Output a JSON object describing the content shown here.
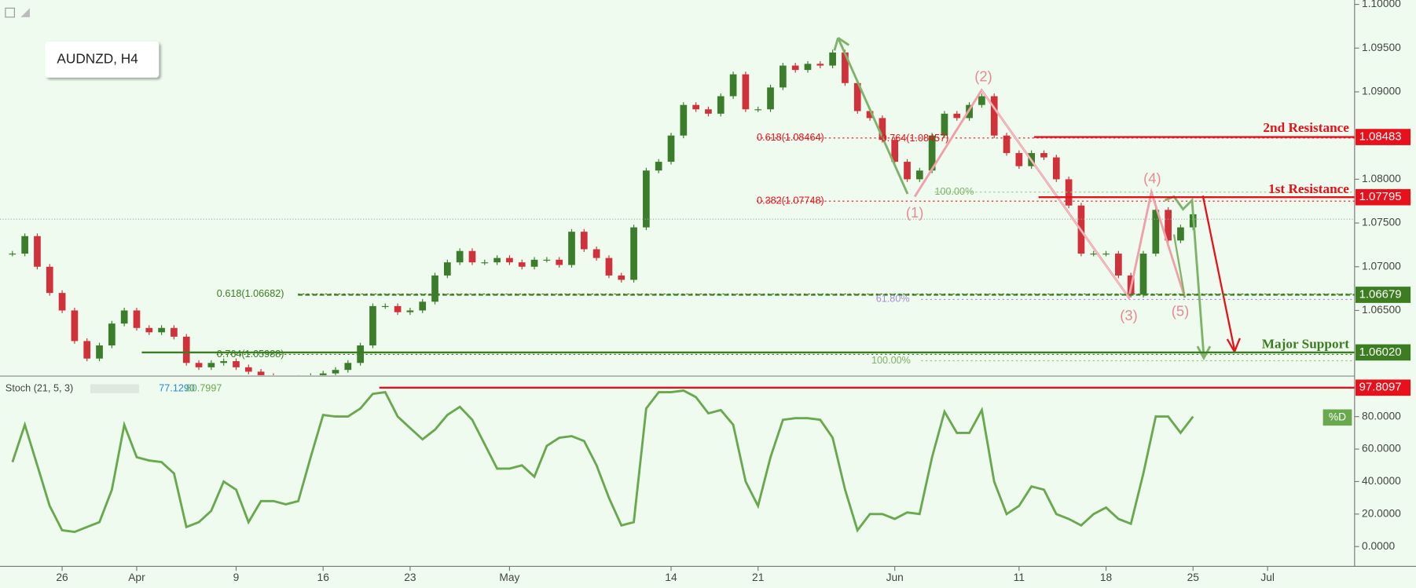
{
  "symbol": "AUDNZD, H4",
  "chart_data": [
    {
      "type": "candlestick",
      "x": [
        -4,
        -3,
        -2,
        -1,
        0,
        1,
        2,
        3,
        4,
        5,
        6,
        7,
        8,
        9,
        10,
        11,
        12,
        13,
        14,
        15,
        16,
        17,
        18,
        19,
        20,
        21,
        22,
        23,
        24,
        25,
        26,
        27,
        28,
        29,
        30,
        31,
        32,
        33,
        34,
        35,
        36,
        37,
        38,
        39,
        40,
        41,
        42,
        43,
        44,
        45,
        46,
        47,
        48,
        49,
        50,
        51,
        52,
        53,
        54,
        55,
        56,
        57,
        58,
        59,
        60,
        61,
        62,
        63,
        64,
        65,
        66,
        67,
        68,
        69,
        70,
        71,
        72,
        73,
        74,
        75,
        76,
        77,
        78,
        79,
        80,
        81,
        82,
        83,
        84,
        85,
        86,
        87,
        88,
        89,
        90,
        91
      ],
      "close": [
        1.0715,
        1.0735,
        1.07,
        1.067,
        1.065,
        1.0615,
        1.0595,
        1.061,
        1.0635,
        1.065,
        1.063,
        1.0625,
        1.063,
        1.062,
        1.059,
        1.0585,
        1.059,
        1.0592,
        1.0585,
        1.058,
        1.0575,
        1.057,
        1.0572,
        1.0573,
        1.0575,
        1.0578,
        1.0582,
        1.059,
        1.061,
        1.0655,
        1.0655,
        1.0648,
        1.065,
        1.066,
        1.069,
        1.0705,
        1.0718,
        1.0705,
        1.0705,
        1.071,
        1.0705,
        1.07,
        1.0708,
        1.0708,
        1.0702,
        1.074,
        1.072,
        1.071,
        1.069,
        1.0685,
        1.0745,
        1.081,
        1.082,
        1.085,
        1.0885,
        1.088,
        1.0875,
        1.0895,
        1.092,
        1.088,
        1.088,
        1.0905,
        1.093,
        1.0925,
        1.0932,
        1.093,
        1.0945,
        1.091,
        1.0878,
        1.087,
        1.0845,
        1.082,
        1.08,
        1.081,
        1.085,
        1.0875,
        1.087,
        1.0885,
        1.0895,
        1.085,
        1.083,
        1.0815,
        1.083,
        1.0825,
        1.08,
        1.077,
        1.0715,
        1.0715,
        1.0715,
        1.069,
        1.0668,
        1.0715,
        1.0765,
        1.073,
        1.0745,
        1.076
      ],
      "xlim": [
        -5,
        104
      ],
      "ylim": [
        1.0576,
        1.1005
      ],
      "xticks": [
        {
          "value": 0,
          "label": "26"
        },
        {
          "value": 6,
          "label": "Apr"
        },
        {
          "value": 14,
          "label": "9"
        },
        {
          "value": 21,
          "label": "16"
        },
        {
          "value": 28,
          "label": "23"
        },
        {
          "value": 36,
          "label": "May"
        },
        {
          "value": 49,
          "label": "14"
        },
        {
          "value": 56,
          "label": "21"
        },
        {
          "value": 67,
          "label": "Jun"
        },
        {
          "value": 77,
          "label": "11"
        },
        {
          "value": 84,
          "label": "18"
        },
        {
          "value": 91,
          "label": "25"
        },
        {
          "value": 97,
          "label": "Jul"
        }
      ],
      "yticks": [
        {
          "value": 1.1,
          "label": "1.10000"
        },
        {
          "value": 1.095,
          "label": "1.09500"
        },
        {
          "value": 1.09,
          "label": "1.09000"
        },
        {
          "value": 1.08,
          "label": "1.08000"
        },
        {
          "value": 1.075,
          "label": "1.07500"
        },
        {
          "value": 1.07,
          "label": "1.07000"
        },
        {
          "value": 1.065,
          "label": "1.06500"
        }
      ],
      "up_color": "#3b7d2b",
      "down_color": "#d0313a",
      "levels": [
        {
          "name": "2nd Resistance",
          "value": 1.08483,
          "label": "1.08483",
          "color": "#e8101a"
        },
        {
          "name": "1st Resistance",
          "value": 1.07795,
          "label": "1.07795",
          "color": "#e8101a"
        },
        {
          "value": 1.06679,
          "label": "1.06679",
          "color": "#3c7d22"
        },
        {
          "name": "Major Support",
          "value": 1.0602,
          "label": "1.06020",
          "color": "#3c7d22"
        }
      ],
      "fib_labels": [
        {
          "label": "0.618(1.08464)",
          "color": "#e8101a"
        },
        {
          "label": "0.764(1.08457)",
          "color": "#e8101a"
        },
        {
          "label": "0.382(1.07748)",
          "color": "#e8101a"
        },
        {
          "label": "100.00%",
          "color": "#7fb36a"
        },
        {
          "label": "0.618(1.06682)",
          "color": "#3c7d22"
        },
        {
          "label": "0.764(1.05988)",
          "color": "#3c7d22"
        },
        {
          "label": "61.80%",
          "color": "#a48fd8"
        },
        {
          "label": "100.00%",
          "color": "#7fb36a"
        }
      ],
      "wave_labels": [
        "(1)",
        "(2)",
        "(3)",
        "(4)",
        "(5)"
      ]
    },
    {
      "type": "line",
      "title": "Stoch (21, 5, 3)",
      "readings": [
        "77.1290",
        "80.7997"
      ],
      "x": [
        -4,
        -3,
        -2,
        -1,
        0,
        1,
        2,
        3,
        4,
        5,
        6,
        7,
        8,
        9,
        10,
        11,
        12,
        13,
        14,
        15,
        16,
        17,
        18,
        19,
        20,
        21,
        22,
        23,
        24,
        25,
        26,
        27,
        28,
        29,
        30,
        31,
        32,
        33,
        34,
        35,
        36,
        37,
        38,
        39,
        40,
        41,
        42,
        43,
        44,
        45,
        46,
        47,
        48,
        49,
        50,
        51,
        52,
        53,
        54,
        55,
        56,
        57,
        58,
        59,
        60,
        61,
        62,
        63,
        64,
        65,
        66,
        67,
        68,
        69,
        70,
        71,
        72,
        73,
        74,
        75,
        76,
        77,
        78,
        79,
        80,
        81,
        82,
        83,
        84,
        85,
        86,
        87,
        88,
        89,
        90,
        91
      ],
      "series": [
        {
          "name": "%D",
          "color": "#6aa84f",
          "values": [
            52,
            75,
            50,
            25,
            10,
            9,
            12,
            15,
            35,
            75,
            55,
            53,
            52,
            45,
            12,
            15,
            22,
            40,
            35,
            15,
            28,
            28,
            26,
            28,
            55,
            81,
            80,
            80,
            85,
            94,
            95,
            80,
            73,
            66,
            72,
            81,
            86,
            78,
            63,
            48,
            48,
            50,
            43,
            62,
            67,
            68,
            65,
            50,
            30,
            13,
            15,
            85,
            95,
            95,
            96,
            92,
            82,
            84,
            75,
            40,
            25,
            55,
            78,
            79,
            79,
            78,
            67,
            35,
            10,
            20,
            20,
            17,
            21,
            20,
            55,
            83,
            70,
            70,
            84,
            40,
            20,
            25,
            37,
            35,
            20,
            17,
            13,
            20,
            24,
            17,
            14,
            45,
            80,
            80,
            70,
            80
          ]
        }
      ],
      "xlim": [
        -5,
        104
      ],
      "ylim": [
        -12.2,
        104.4
      ],
      "yticks": [
        {
          "value": 0,
          "label": "0.0000"
        },
        {
          "value": 20,
          "label": "20.0000"
        },
        {
          "value": 40,
          "label": "40.0000"
        },
        {
          "value": 60,
          "label": "60.0000"
        },
        {
          "value": 80,
          "label": "80.0000"
        }
      ],
      "level": {
        "value": 97.8097,
        "label": "97.8097",
        "color": "#e8101a"
      }
    }
  ]
}
